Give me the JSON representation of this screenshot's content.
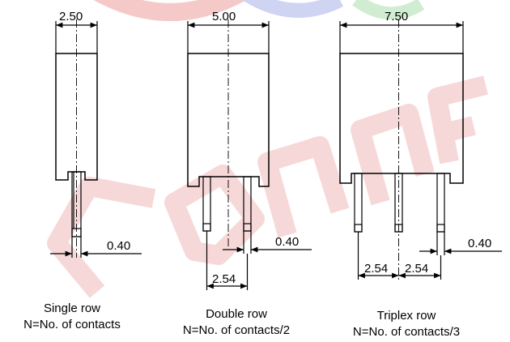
{
  "watermark": {
    "text": "CONNFLY",
    "colors": [
      "#f2b8b8",
      "#b9c3ea",
      "#bfe6bf"
    ]
  },
  "single": {
    "width_label": "2.50",
    "pin_label": "0.40",
    "caption_line1": "Single row",
    "caption_line2": "N=No. of contacts"
  },
  "double": {
    "width_label": "5.00",
    "pin_label": "0.40",
    "pitch_label": "2.54",
    "caption_line1": "Double row",
    "caption_line2": "N=No. of contacts/2"
  },
  "triple": {
    "width_label": "7.50",
    "pin_label": "0.40",
    "pitch_label_1": "2.54",
    "pitch_label_2": "2.54",
    "caption_line1": "Triplex row",
    "caption_line2": "N=No. of contacts/3"
  }
}
